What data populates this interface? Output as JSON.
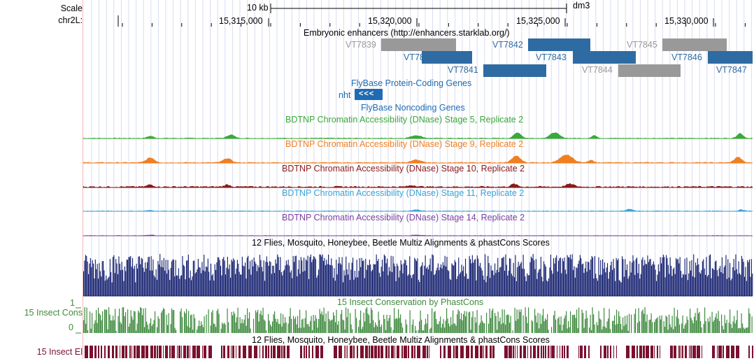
{
  "ruler": {
    "scale_label": "Scale",
    "chrom_label": "chr2L:",
    "scale_bar_label": "10 kb",
    "assembly": "dm3",
    "positions": [
      "15,315,000",
      "15,320,000",
      "15,325,000",
      "15,330,000"
    ]
  },
  "tracks": {
    "enhancers": {
      "title": "Embryonic enhancers (http://enhancers.starklab.org/)",
      "items": [
        {
          "name": "VT7839",
          "color": "#999999"
        },
        {
          "name": "VT7840",
          "color": "#2f6ba3"
        },
        {
          "name": "VT7841",
          "color": "#2f6ba3"
        },
        {
          "name": "VT7842",
          "color": "#2f6ba3"
        },
        {
          "name": "VT7843",
          "color": "#2f6ba3"
        },
        {
          "name": "VT7844",
          "color": "#999999"
        },
        {
          "name": "VT7845",
          "color": "#999999"
        },
        {
          "name": "VT7846",
          "color": "#2f6ba3"
        },
        {
          "name": "VT7847",
          "color": "#2f6ba3"
        }
      ]
    },
    "flybase_coding": {
      "title": "FlyBase Protein-Coding Genes",
      "gene": "nht",
      "gene_glyph": "<<<",
      "color": "#1f6bb3"
    },
    "flybase_noncoding": {
      "title": "FlyBase Noncoding Genes",
      "color": "#1f6bb3"
    },
    "dnase": [
      {
        "title": "BDTNP Chromatin Accessibility (DNase) Stage 5, Replicate 2",
        "color": "#3aa83a"
      },
      {
        "title": "BDTNP Chromatin Accessibility (DNase) Stage 9, Replicate 2",
        "color": "#f07f22"
      },
      {
        "title": "BDTNP Chromatin Accessibility (DNase) Stage 10, Replicate 2",
        "color": "#8b1a1a"
      },
      {
        "title": "BDTNP Chromatin Accessibility (DNase) Stage 11, Replicate 2",
        "color": "#3ba3d8"
      },
      {
        "title": "BDTNP Chromatin Accessibility (DNase) Stage 14, Replicate 2",
        "color": "#7b3fa0"
      }
    ],
    "multiz": {
      "title": "12 Flies, Mosquito, Honeybee, Beetle Multiz Alignments & phastCons Scores",
      "color": "#0e1a6b"
    },
    "insect_cons": {
      "title": "15 Insect Conservation by PhastCons",
      "left_label": "15 Insect Cons",
      "axis_max": "1",
      "axis_min": "0",
      "color": "#3f8a3f"
    },
    "insect_el": {
      "title": "12 Flies, Mosquito, Honeybee, Beetle Multiz Alignments & phastCons Scores",
      "left_label": "15 Insect El",
      "color": "#7a1030"
    }
  }
}
